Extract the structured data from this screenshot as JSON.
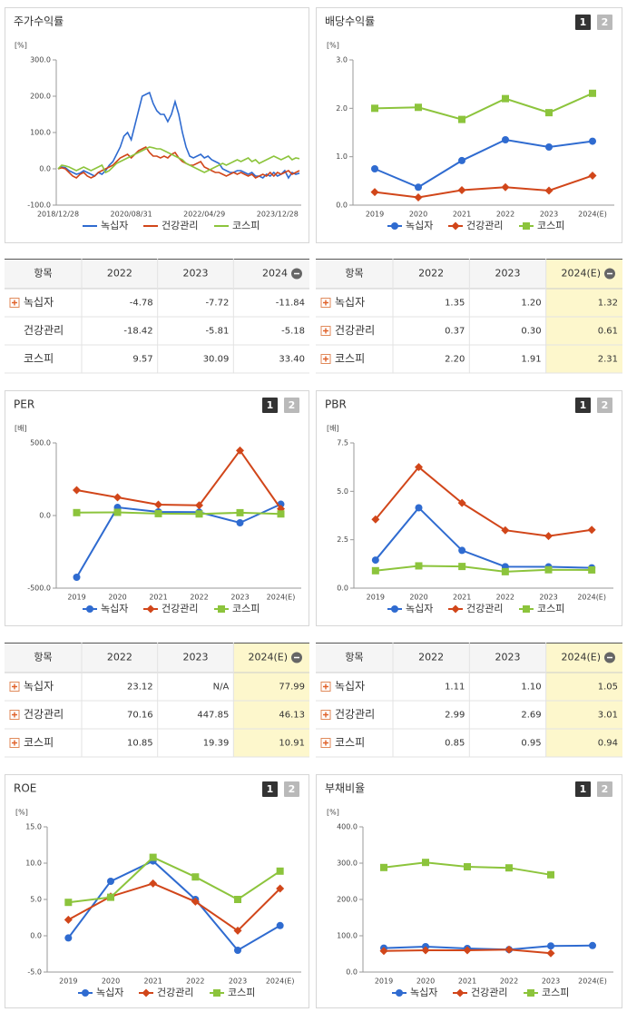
{
  "chart_data": [
    {
      "type": "line",
      "title": "주가수익률",
      "unit": "[%]",
      "categories": [
        "2018/12/28",
        null,
        null,
        null,
        null,
        null,
        null,
        null,
        null,
        null,
        null,
        null,
        null,
        null,
        null,
        null,
        null,
        null,
        null,
        null,
        "2020/08/31",
        null,
        null,
        null,
        null,
        null,
        null,
        null,
        null,
        null,
        null,
        null,
        null,
        null,
        null,
        null,
        null,
        null,
        null,
        null,
        "2022/04/29",
        null,
        null,
        null,
        null,
        null,
        null,
        null,
        null,
        null,
        null,
        null,
        null,
        null,
        null,
        null,
        null,
        null,
        null,
        null,
        "2023/12/28",
        null,
        null,
        null,
        null,
        null,
        null
      ],
      "series": [
        {
          "name": "녹십자",
          "color": "#2f6bd0",
          "values": [
            0,
            5,
            3,
            -5,
            -10,
            -15,
            -12,
            -5,
            -10,
            -15,
            -20,
            -10,
            -15,
            -5,
            10,
            20,
            40,
            60,
            90,
            100,
            80,
            120,
            160,
            200,
            205,
            210,
            180,
            160,
            150,
            150,
            130,
            150,
            185,
            150,
            100,
            60,
            35,
            30,
            35,
            40,
            30,
            35,
            25,
            20,
            15,
            0,
            -5,
            -10,
            -10,
            -5,
            -5,
            -10,
            -15,
            -10,
            -20,
            -20,
            -25,
            -15,
            -20,
            -10,
            -20,
            -15,
            -5,
            -25,
            -10,
            -15,
            -12
          ]
        },
        {
          "name": "건강관리",
          "color": "#d1461a",
          "values": [
            0,
            3,
            0,
            -10,
            -20,
            -25,
            -15,
            -10,
            -20,
            -25,
            -20,
            -10,
            -5,
            0,
            5,
            10,
            20,
            30,
            35,
            40,
            30,
            40,
            50,
            55,
            60,
            45,
            35,
            35,
            30,
            35,
            30,
            40,
            45,
            30,
            20,
            15,
            10,
            10,
            15,
            20,
            5,
            0,
            -5,
            -10,
            -10,
            -15,
            -20,
            -15,
            -10,
            -15,
            -10,
            -15,
            -20,
            -15,
            -25,
            -20,
            -15,
            -20,
            -10,
            -20,
            -10,
            -15,
            -10,
            -5,
            -15,
            -10,
            -5
          ]
        },
        {
          "name": "코스피",
          "color": "#8cc43c",
          "values": [
            0,
            10,
            8,
            5,
            0,
            -5,
            0,
            5,
            0,
            -5,
            0,
            5,
            10,
            -10,
            -5,
            5,
            15,
            20,
            25,
            30,
            35,
            40,
            45,
            50,
            55,
            60,
            58,
            55,
            55,
            50,
            45,
            40,
            35,
            30,
            25,
            15,
            10,
            5,
            0,
            -5,
            -10,
            -5,
            0,
            5,
            10,
            15,
            10,
            15,
            20,
            25,
            20,
            25,
            30,
            20,
            25,
            15,
            20,
            25,
            30,
            35,
            30,
            25,
            30,
            35,
            25,
            30,
            28
          ]
        }
      ],
      "ylim": [
        -100,
        300
      ],
      "yticks": [
        {
          "value": -100,
          "label": "-100.0"
        },
        {
          "value": 0,
          "label": "0.0"
        },
        {
          "value": 100,
          "label": "100.0"
        },
        {
          "value": 200,
          "label": "200.0"
        },
        {
          "value": 300,
          "label": "300.0"
        }
      ]
    },
    {
      "type": "line",
      "title": "배당수익률",
      "tabs": [
        "1",
        "2"
      ],
      "unit": "[%]",
      "categories": [
        "2019",
        "2020",
        "2021",
        "2022",
        "2023",
        "2024(E)"
      ],
      "series": [
        {
          "name": "녹십자",
          "color": "#2f6bd0",
          "marker": "circle",
          "values": [
            0.75,
            0.37,
            0.92,
            1.35,
            1.2,
            1.32
          ]
        },
        {
          "name": "건강관리",
          "color": "#d1461a",
          "marker": "diamond",
          "values": [
            0.27,
            0.16,
            0.31,
            0.37,
            0.3,
            0.61
          ]
        },
        {
          "name": "코스피",
          "color": "#8cc43c",
          "marker": "square",
          "values": [
            2.0,
            2.02,
            1.77,
            2.2,
            1.91,
            2.31
          ]
        }
      ],
      "ylim": [
        0,
        3
      ],
      "yticks": [
        {
          "value": 0,
          "label": "0.0"
        },
        {
          "value": 1,
          "label": "1.0"
        },
        {
          "value": 2,
          "label": "2.0"
        },
        {
          "value": 3,
          "label": "3.0"
        }
      ]
    },
    {
      "type": "line",
      "title": "PER",
      "tabs": [
        "1",
        "2"
      ],
      "unit": "[배]",
      "categories": [
        "2019",
        "2020",
        "2021",
        "2022",
        "2023",
        "2024(E)"
      ],
      "series": [
        {
          "name": "녹십자",
          "color": "#2f6bd0",
          "marker": "circle",
          "values": [
            -425,
            56,
            25,
            23.12,
            -50,
            77.99
          ]
        },
        {
          "name": "건강관리",
          "color": "#d1461a",
          "marker": "diamond",
          "values": [
            175,
            125,
            75,
            70.16,
            447.85,
            46.13
          ]
        },
        {
          "name": "코스피",
          "color": "#8cc43c",
          "marker": "square",
          "values": [
            20,
            22,
            13,
            10.85,
            19.39,
            10.91
          ]
        }
      ],
      "ylim": [
        -500,
        500
      ],
      "yticks": [
        {
          "value": -500,
          "label": "-500.0"
        },
        {
          "value": 0,
          "label": "0.0"
        },
        {
          "value": 500,
          "label": "500.0"
        }
      ]
    },
    {
      "type": "line",
      "title": "PBR",
      "tabs": [
        "1",
        "2"
      ],
      "unit": "[배]",
      "categories": [
        "2019",
        "2020",
        "2021",
        "2022",
        "2023",
        "2024(E)"
      ],
      "series": [
        {
          "name": "녹십자",
          "color": "#2f6bd0",
          "marker": "circle",
          "values": [
            1.45,
            4.15,
            1.95,
            1.11,
            1.1,
            1.05
          ]
        },
        {
          "name": "건강관리",
          "color": "#d1461a",
          "marker": "diamond",
          "values": [
            3.55,
            6.25,
            4.4,
            2.99,
            2.69,
            3.01
          ]
        },
        {
          "name": "코스피",
          "color": "#8cc43c",
          "marker": "square",
          "values": [
            0.9,
            1.15,
            1.12,
            0.85,
            0.95,
            0.94
          ]
        }
      ],
      "ylim": [
        0,
        7.5
      ],
      "yticks": [
        {
          "value": 0,
          "label": "0.0"
        },
        2.5,
        {
          "value": 5,
          "label": "5.0"
        },
        7.5
      ]
    },
    {
      "type": "line",
      "title": "ROE",
      "tabs": [
        "1",
        "2"
      ],
      "unit": "[%]",
      "categories": [
        "2019",
        "2020",
        "2021",
        "2022",
        "2023",
        "2024(E)"
      ],
      "series": [
        {
          "name": "녹십자",
          "color": "#2f6bd0",
          "marker": "circle",
          "values": [
            -0.3,
            7.5,
            10.3,
            5.0,
            -2.0,
            1.4
          ]
        },
        {
          "name": "건강관리",
          "color": "#d1461a",
          "marker": "diamond",
          "values": [
            2.2,
            5.4,
            7.2,
            4.7,
            0.7,
            6.5
          ]
        },
        {
          "name": "코스피",
          "color": "#8cc43c",
          "marker": "square",
          "values": [
            4.6,
            5.3,
            10.8,
            8.1,
            5.0,
            8.9
          ]
        }
      ],
      "ylim": [
        -5,
        15
      ],
      "yticks": [
        {
          "value": -5,
          "label": "-5.0"
        },
        {
          "value": 0,
          "label": "0.0"
        },
        {
          "value": 5,
          "label": "5.0"
        },
        {
          "value": 10,
          "label": "10.0"
        },
        {
          "value": 15,
          "label": "15.0"
        }
      ]
    },
    {
      "type": "line",
      "title": "부채비율",
      "tabs": [
        "1",
        "2"
      ],
      "unit": "[%]",
      "categories": [
        "2019",
        "2020",
        "2021",
        "2022",
        "2023",
        "2024(E)"
      ],
      "series": [
        {
          "name": "녹십자",
          "color": "#2f6bd0",
          "marker": "circle",
          "values": [
            66,
            70,
            65,
            62,
            72,
            73
          ]
        },
        {
          "name": "건강관리",
          "color": "#d1461a",
          "marker": "diamond",
          "values": [
            58,
            60,
            60,
            62,
            52,
            null
          ]
        },
        {
          "name": "코스피",
          "color": "#8cc43c",
          "marker": "square",
          "values": [
            288,
            302,
            290,
            287,
            268,
            null
          ]
        }
      ],
      "ylim": [
        0,
        400
      ],
      "yticks": [
        {
          "value": 0,
          "label": "0.0"
        },
        {
          "value": 100,
          "label": "100.0"
        },
        {
          "value": 200,
          "label": "200.0"
        },
        {
          "value": 300,
          "label": "300.0"
        },
        {
          "value": 400,
          "label": "400.0"
        }
      ]
    }
  ],
  "tables": [
    {
      "columns": [
        "항목",
        "2022",
        "2023",
        "2024"
      ],
      "rows": [
        [
          "녹십자",
          "-4.78",
          "-7.72",
          "-11.84"
        ],
        [
          "건강관리",
          "-18.42",
          "-5.81",
          "-5.18"
        ],
        [
          "코스피",
          "9.57",
          "30.09",
          "33.40"
        ]
      ]
    },
    {
      "columns": [
        "항목",
        "2022",
        "2023",
        "2024(E)"
      ],
      "rows": [
        [
          "녹십자",
          "1.35",
          "1.20",
          "1.32"
        ],
        [
          "건강관리",
          "0.37",
          "0.30",
          "0.61"
        ],
        [
          "코스피",
          "2.20",
          "1.91",
          "2.31"
        ]
      ]
    },
    {
      "columns": [
        "항목",
        "2022",
        "2023",
        "2024(E)"
      ],
      "rows": [
        [
          "녹십자",
          "23.12",
          "N/A",
          "77.99"
        ],
        [
          "건강관리",
          "70.16",
          "447.85",
          "46.13"
        ],
        [
          "코스피",
          "10.85",
          "19.39",
          "10.91"
        ]
      ]
    },
    {
      "columns": [
        "항목",
        "2022",
        "2023",
        "2024(E)"
      ],
      "rows": [
        [
          "녹십자",
          "1.11",
          "1.10",
          "1.05"
        ],
        [
          "건강관리",
          "2.99",
          "2.69",
          "3.01"
        ],
        [
          "코스피",
          "0.85",
          "0.95",
          "0.94"
        ]
      ]
    }
  ]
}
